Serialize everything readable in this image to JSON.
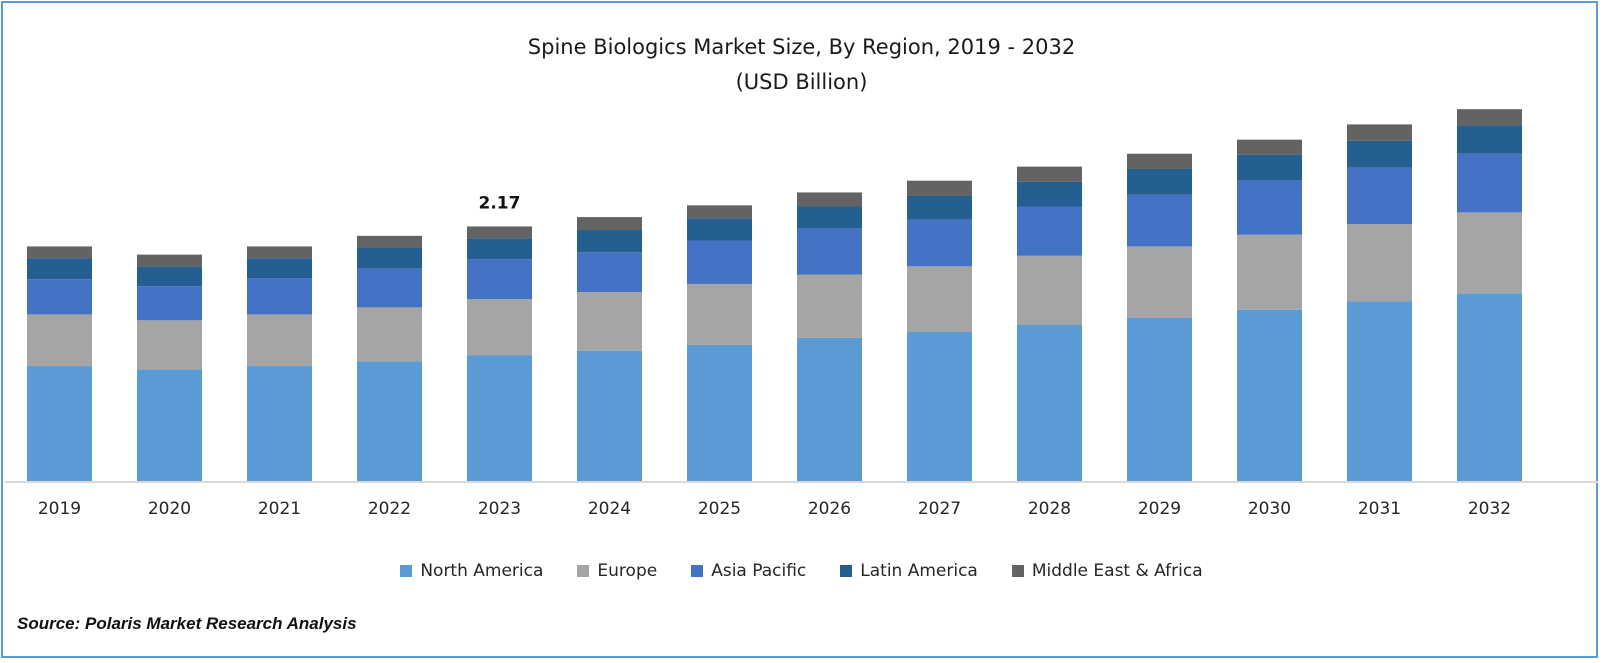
{
  "chart_data": {
    "type": "bar",
    "stacked": true,
    "title": "Spine Biologics Market Size, By Region, 2019 - 2032",
    "subtitle": "(USD Billion)",
    "categories": [
      "2019",
      "2020",
      "2021",
      "2022",
      "2023",
      "2024",
      "2025",
      "2026",
      "2027",
      "2028",
      "2029",
      "2030",
      "2031",
      "2032"
    ],
    "series": [
      {
        "name": "North America",
        "color": "#5b9bd5",
        "values": [
          0.98,
          0.95,
          0.98,
          1.02,
          1.07,
          1.11,
          1.16,
          1.22,
          1.27,
          1.33,
          1.39,
          1.46,
          1.53,
          1.6
        ]
      },
      {
        "name": "Europe",
        "color": "#a5a5a5",
        "values": [
          0.44,
          0.42,
          0.44,
          0.46,
          0.48,
          0.5,
          0.52,
          0.54,
          0.56,
          0.59,
          0.61,
          0.64,
          0.66,
          0.69
        ]
      },
      {
        "name": "Asia Pacific",
        "color": "#4472c4",
        "values": [
          0.3,
          0.29,
          0.31,
          0.33,
          0.34,
          0.34,
          0.37,
          0.39,
          0.4,
          0.42,
          0.44,
          0.46,
          0.48,
          0.5
        ]
      },
      {
        "name": "Latin America",
        "color": "#255e91",
        "values": [
          0.18,
          0.17,
          0.17,
          0.18,
          0.18,
          0.19,
          0.19,
          0.19,
          0.2,
          0.21,
          0.22,
          0.22,
          0.23,
          0.24
        ]
      },
      {
        "name": "Middle East & Africa",
        "color": "#636363",
        "values": [
          0.1,
          0.1,
          0.1,
          0.1,
          0.1,
          0.11,
          0.11,
          0.12,
          0.13,
          0.13,
          0.13,
          0.13,
          0.14,
          0.14
        ]
      }
    ],
    "annotations": [
      {
        "category": "2023",
        "text": "2.17"
      }
    ],
    "ylim": [
      0,
      3.4
    ],
    "grid": false,
    "legend": "bottom",
    "xlabel": "",
    "ylabel": ""
  },
  "source": "Source: Polaris Market Research Analysis"
}
